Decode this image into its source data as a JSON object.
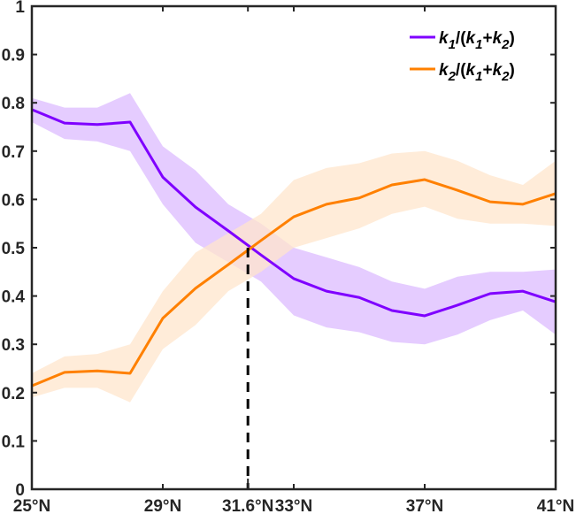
{
  "chart_data": {
    "type": "line",
    "title": "",
    "xlabel": "",
    "ylabel": "",
    "xlim": [
      25,
      41
    ],
    "ylim": [
      0,
      1
    ],
    "grid": false,
    "legend_position": "top-right",
    "x": [
      25,
      26,
      27,
      28,
      29,
      30,
      31,
      32,
      33,
      34,
      35,
      36,
      37,
      38,
      39,
      40,
      41
    ],
    "x_ticks": [
      {
        "value": 25,
        "label": "25°N"
      },
      {
        "value": 29,
        "label": "29°N"
      },
      {
        "value": 31.6,
        "label": "31.6°N",
        "highlight": true
      },
      {
        "value": 33,
        "label": "33°N"
      },
      {
        "value": 37,
        "label": "37°N"
      },
      {
        "value": 41,
        "label": "41°N"
      }
    ],
    "y_ticks": [
      {
        "value": 0,
        "label": "0"
      },
      {
        "value": 0.1,
        "label": "0.1"
      },
      {
        "value": 0.2,
        "label": "0.2"
      },
      {
        "value": 0.3,
        "label": "0.3"
      },
      {
        "value": 0.4,
        "label": "0.4"
      },
      {
        "value": 0.5,
        "label": "0.5"
      },
      {
        "value": 0.6,
        "label": "0.6"
      },
      {
        "value": 0.7,
        "label": "0.7"
      },
      {
        "value": 0.8,
        "label": "0.8"
      },
      {
        "value": 0.9,
        "label": "0.9"
      },
      {
        "value": 1,
        "label": "1"
      }
    ],
    "series": [
      {
        "name": "k1/(k1+k2)",
        "legend": {
          "k": "k",
          "sub1": "1",
          "mid": "/(",
          "k2a": "k",
          "sub2": "1",
          "plus": "+",
          "k3": "k",
          "sub3": "2",
          "close": ")"
        },
        "color": "#7F00FF",
        "band_color": "#E5CCFF",
        "values": [
          0.786,
          0.758,
          0.755,
          0.76,
          0.646,
          0.584,
          0.535,
          0.485,
          0.436,
          0.41,
          0.397,
          0.37,
          0.359,
          0.381,
          0.405,
          0.41,
          0.388
        ],
        "upper": [
          0.81,
          0.79,
          0.79,
          0.82,
          0.71,
          0.66,
          0.59,
          0.55,
          0.5,
          0.48,
          0.46,
          0.43,
          0.415,
          0.44,
          0.45,
          0.45,
          0.455
        ],
        "lower": [
          0.76,
          0.725,
          0.72,
          0.7,
          0.59,
          0.51,
          0.47,
          0.43,
          0.36,
          0.335,
          0.325,
          0.305,
          0.3,
          0.32,
          0.35,
          0.37,
          0.32
        ]
      },
      {
        "name": "k2/(k1+k2)",
        "legend": {
          "k": "k",
          "sub1": "2",
          "mid": "/(",
          "k2a": "k",
          "sub2": "1",
          "plus": "+",
          "k3": "k",
          "sub3": "2",
          "close": ")"
        },
        "color": "#FF8000",
        "band_color": "#FFE5CC",
        "values": [
          0.214,
          0.242,
          0.245,
          0.24,
          0.354,
          0.416,
          0.465,
          0.515,
          0.564,
          0.59,
          0.603,
          0.63,
          0.641,
          0.619,
          0.595,
          0.59,
          0.612
        ],
        "upper": [
          0.24,
          0.275,
          0.28,
          0.3,
          0.41,
          0.49,
          0.53,
          0.57,
          0.64,
          0.665,
          0.675,
          0.695,
          0.7,
          0.68,
          0.65,
          0.63,
          0.68
        ],
        "lower": [
          0.19,
          0.21,
          0.21,
          0.18,
          0.29,
          0.34,
          0.41,
          0.45,
          0.5,
          0.52,
          0.54,
          0.57,
          0.585,
          0.56,
          0.55,
          0.55,
          0.545
        ]
      }
    ],
    "annotation": {
      "type": "vertical-dashed-line",
      "x": 31.6,
      "y_from": 0,
      "y_to": 0.5,
      "color": "#000000",
      "label": "31.6°N",
      "label_color": "#FF0000"
    }
  }
}
